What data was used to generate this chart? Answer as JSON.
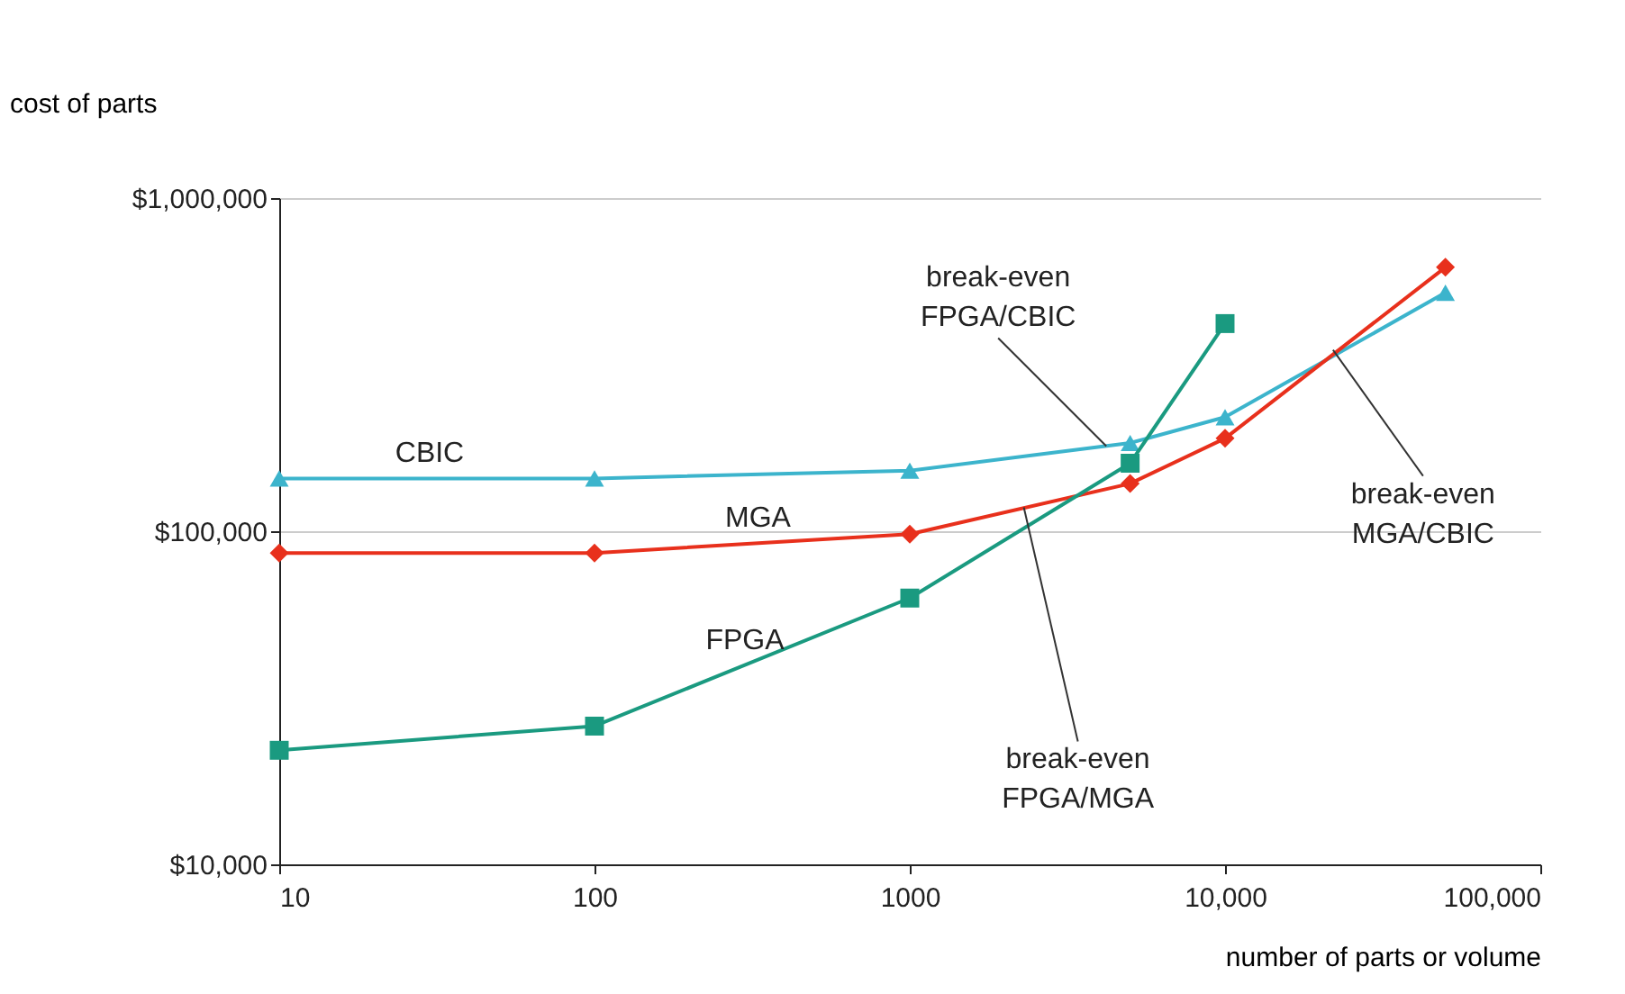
{
  "chart_data": {
    "type": "line",
    "xlabel": "number of parts or volume",
    "ylabel": "cost of parts",
    "log": "xy",
    "xlim": [
      10,
      100000
    ],
    "ylim": [
      10000,
      1000000
    ],
    "xticks": [
      10,
      100,
      1000,
      {
        "value": 10000,
        "label": "10,000"
      },
      {
        "value": 100000,
        "label": "100,000"
      }
    ],
    "yticks": [
      {
        "value": 10000,
        "label": "$10,000"
      },
      {
        "value": 100000,
        "label": "$100,000"
      },
      {
        "value": 1000000,
        "label": "$1,000,000"
      }
    ],
    "grid": "y",
    "line_style": "solid",
    "x": [
      10,
      100,
      1000,
      5000,
      10000,
      50000
    ],
    "series": [
      {
        "name": "CBIC",
        "color": "#3cb4cc",
        "marker": "triangle",
        "values": [
          144000,
          144000,
          152000,
          184000,
          220000,
          520000
        ]
      },
      {
        "name": "MGA",
        "color": "#e8301c",
        "marker": "diamond",
        "values": [
          86000,
          86000,
          98000,
          139000,
          190000,
          620000
        ]
      },
      {
        "name": "FPGA",
        "color": "#1a9a80",
        "marker": "square",
        "values": [
          22000,
          26000,
          63000,
          160000,
          420000,
          null
        ]
      }
    ],
    "annotations": [
      {
        "text": "break-even\nFPGA/CBIC",
        "x": 4200,
        "y": 180000
      },
      {
        "text": "break-even\nFPGA/MGA",
        "x": 2300,
        "y": 118000
      },
      {
        "text": "break-even\nMGA/CBIC",
        "x": 22000,
        "y": 350000
      }
    ]
  }
}
